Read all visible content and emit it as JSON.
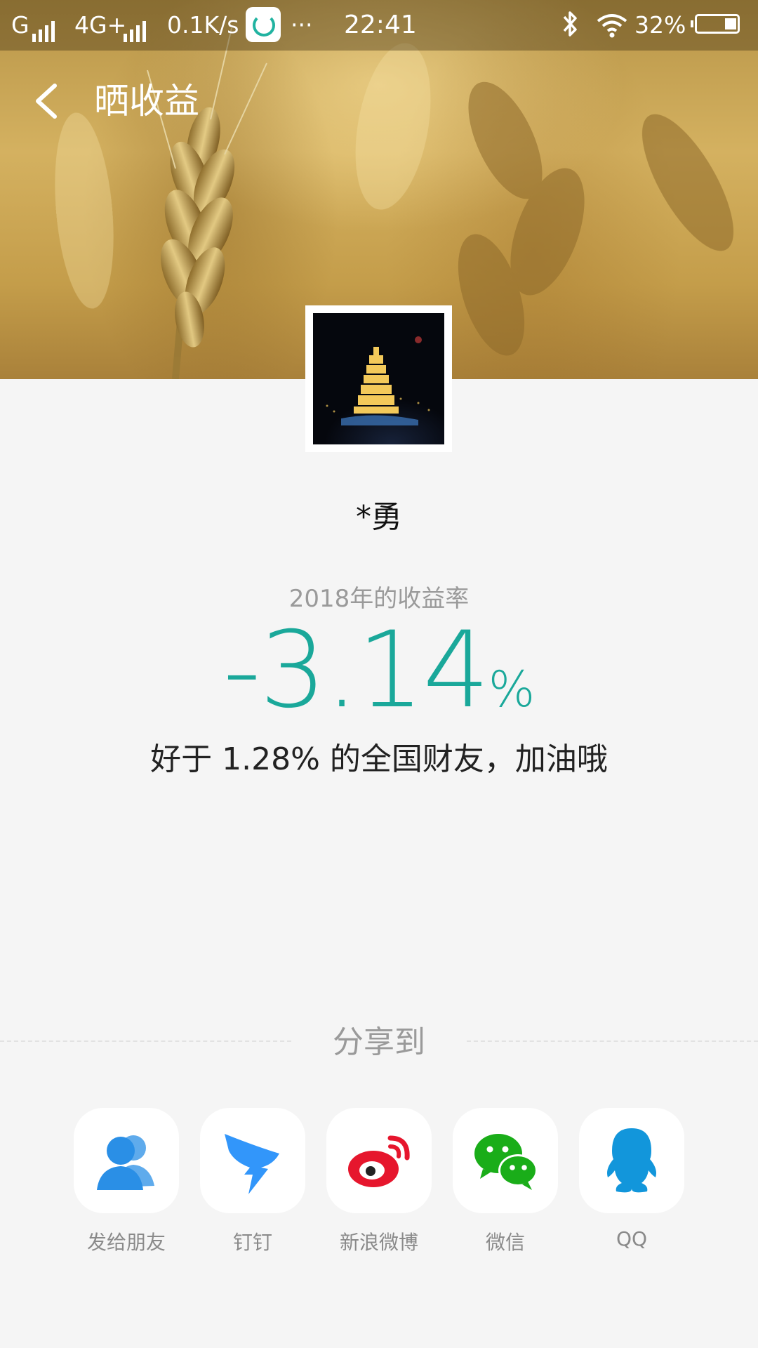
{
  "status_bar": {
    "carrier1": "G",
    "carrier2": "4G+",
    "speed": "0.1K/s",
    "more": "···",
    "time": "22:41",
    "battery": "32%",
    "icons": [
      "signal-icon",
      "app-icon",
      "bluetooth-icon",
      "wifi-icon",
      "battery-icon"
    ]
  },
  "header": {
    "back_icon": "back-arrow-icon",
    "title": "晒收益"
  },
  "profile": {
    "name": "*勇"
  },
  "stats": {
    "label": "2018年的收益率",
    "value": "-3.14",
    "unit": "%",
    "compare": "好于 1.28% 的全国财友，加油哦"
  },
  "share": {
    "title": "分享到",
    "targets": [
      {
        "label": "发给朋友",
        "icon": "friends-icon",
        "color": "#2a8fe6"
      },
      {
        "label": "钉钉",
        "icon": "dingtalk-icon",
        "color": "#3296fa"
      },
      {
        "label": "新浪微博",
        "icon": "weibo-icon",
        "color": "#e6162d"
      },
      {
        "label": "微信",
        "icon": "wechat-icon",
        "color": "#1aad19"
      },
      {
        "label": "QQ",
        "icon": "qq-icon",
        "color": "#1296db"
      }
    ]
  },
  "colors": {
    "accent": "#1aa89a",
    "background": "#f5f5f5"
  }
}
